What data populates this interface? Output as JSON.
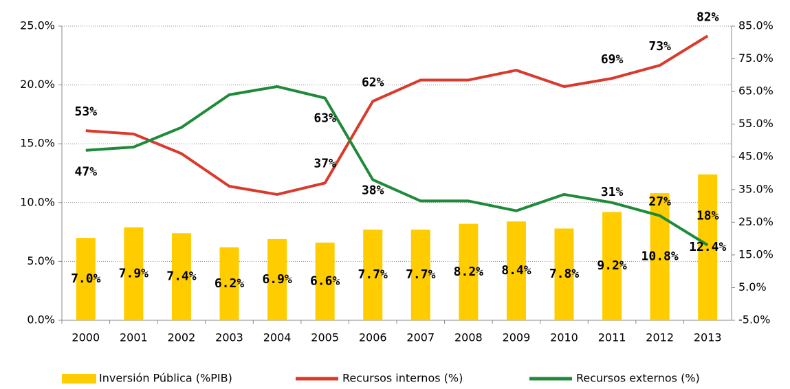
{
  "chart_data": {
    "type": "bar_line",
    "categories": [
      "2000",
      "2001",
      "2002",
      "2003",
      "2004",
      "2005",
      "2006",
      "2007",
      "2008",
      "2009",
      "2010",
      "2011",
      "2012",
      "2013"
    ],
    "series": [
      {
        "name": "Inversión Pública (%PIB)",
        "type": "bar",
        "color": "#ffcc00",
        "axis": "y",
        "values": [
          7.0,
          7.9,
          7.4,
          6.2,
          6.9,
          6.6,
          7.7,
          7.7,
          8.2,
          8.4,
          7.8,
          9.2,
          10.8,
          12.4
        ],
        "value_labels": [
          "7.0%",
          "7.9%",
          "7.4%",
          "6.2%",
          "6.9%",
          "6.6%",
          "7.7%",
          "7.7%",
          "8.2%",
          "8.4%",
          "7.8%",
          "9.2%",
          "10.8%",
          "12.4%"
        ]
      },
      {
        "name": "Recursos internos (%)",
        "type": "line",
        "color": "#d93a2b",
        "axis": "y2",
        "values": [
          53,
          52,
          46,
          36,
          33.5,
          37,
          62,
          68.5,
          68.5,
          71.5,
          66.5,
          69,
          73,
          82
        ],
        "value_labels": [
          "53%",
          null,
          null,
          null,
          null,
          "37%",
          "62%",
          null,
          null,
          null,
          null,
          "69%",
          "73%",
          "82%"
        ]
      },
      {
        "name": "Recursos externos (%)",
        "type": "line",
        "color": "#1e8a3a",
        "axis": "y2",
        "values": [
          47,
          48,
          54,
          64,
          66.5,
          63,
          38,
          31.5,
          31.5,
          28.5,
          33.5,
          31,
          27,
          18
        ],
        "value_labels": [
          "47%",
          null,
          null,
          null,
          null,
          "63%",
          "38%",
          null,
          null,
          null,
          null,
          "31%",
          "27%",
          "18%"
        ]
      }
    ],
    "ylim": [
      0,
      25
    ],
    "yticks": [
      {
        "value": 0,
        "label": "0.0%"
      },
      {
        "value": 5,
        "label": "5.0%"
      },
      {
        "value": 10,
        "label": "10.0%"
      },
      {
        "value": 15,
        "label": "15.0%"
      },
      {
        "value": 20,
        "label": "20.0%"
      },
      {
        "value": 25,
        "label": "25.0%"
      }
    ],
    "y2lim": [
      -5,
      85
    ],
    "y2ticks": [
      {
        "value": -5,
        "label": "-5.0%"
      },
      {
        "value": 5,
        "label": "5.0%"
      },
      {
        "value": 15,
        "label": "15.0%"
      },
      {
        "value": 25,
        "label": "25.0%"
      },
      {
        "value": 35,
        "label": "35.0%"
      },
      {
        "value": 45,
        "label": "45.0%"
      },
      {
        "value": 55,
        "label": "55.0%"
      },
      {
        "value": 65,
        "label": "65.0%"
      },
      {
        "value": 75,
        "label": "75.0%"
      },
      {
        "value": 85,
        "label": "85.0%"
      }
    ],
    "grid": true,
    "legend": "bottom"
  }
}
